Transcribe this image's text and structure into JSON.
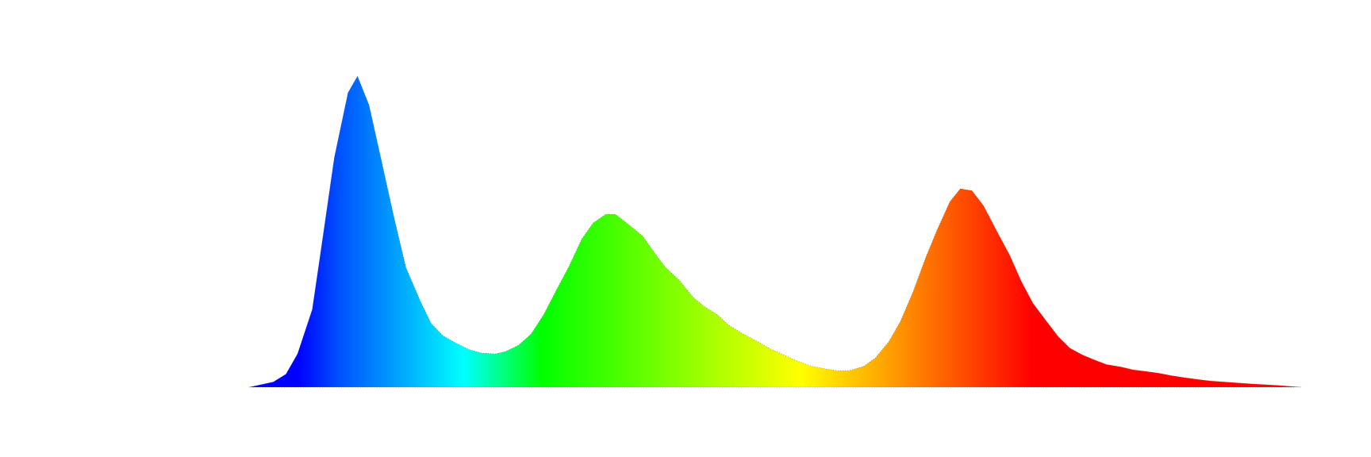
{
  "chart_data": {
    "type": "area",
    "x": [
      0,
      2.3,
      3.5,
      4.6,
      6,
      6.9,
      8.1,
      9.4,
      10.3,
      11.4,
      12.6,
      13.8,
      14.9,
      16.3,
      17.3,
      18.4,
      19.6,
      20.9,
      22.1,
      23.4,
      24.4,
      25.6,
      26.8,
      28,
      29.2,
      30.4,
      31.6,
      32.7,
      33.9,
      34.8,
      36,
      37.4,
      38.4,
      39.5,
      40.9,
      42.2,
      43.2,
      44.5,
      45.6,
      46.8,
      48.2,
      49.5,
      50.8,
      52.1,
      53.5,
      54.8,
      55.9,
      57,
      58.4,
      59.5,
      60.8,
      61.9,
      63.1,
      64.3,
      65.4,
      66.6,
      67.6,
      68.7,
      69.8,
      71,
      72.3,
      73.4,
      74.5,
      75.7,
      76.9,
      78,
      79.2,
      80.4,
      81.5,
      82.9,
      84,
      85.2,
      86.5,
      87.7,
      88.9,
      90.2,
      91.4,
      92.7,
      95.2,
      97.7,
      100
    ],
    "values": [
      0,
      1.7,
      4.2,
      10.7,
      25,
      45.8,
      73.9,
      94.7,
      100,
      90.7,
      72.5,
      54.2,
      38.5,
      27.5,
      20.5,
      16.6,
      14.3,
      12.1,
      11,
      10.7,
      11.5,
      13.5,
      17.1,
      23.3,
      31.2,
      38.8,
      47.5,
      52.8,
      55.6,
      55.6,
      52.5,
      48.6,
      43.8,
      38.8,
      34.3,
      28.9,
      26.1,
      23.3,
      19.9,
      17.4,
      14.9,
      12.4,
      10.4,
      8.4,
      6.7,
      5.9,
      5.3,
      5.3,
      6.7,
      9.3,
      14.6,
      21.1,
      30.6,
      41.6,
      50.6,
      59.6,
      63.8,
      63.2,
      58.4,
      50.6,
      42.4,
      34,
      27,
      21.6,
      16.3,
      12.6,
      10.4,
      8.7,
      7.3,
      6.5,
      5.6,
      5.1,
      4.5,
      3.7,
      3.1,
      2.5,
      2,
      1.7,
      1.1,
      0.6,
      0
    ],
    "xlim": [
      0,
      100
    ],
    "ylim": [
      0,
      100
    ],
    "gradient": [
      {
        "offset": 4.6,
        "color": "#0000ff"
      },
      {
        "offset": 8.5,
        "color": "#0050ff"
      },
      {
        "offset": 20.4,
        "color": "#00ffff"
      },
      {
        "offset": 27.8,
        "color": "#00ff00"
      },
      {
        "offset": 52.4,
        "color": "#ffff00"
      },
      {
        "offset": 60.3,
        "color": "#ffa500"
      },
      {
        "offset": 74.4,
        "color": "#ff0000"
      }
    ]
  }
}
